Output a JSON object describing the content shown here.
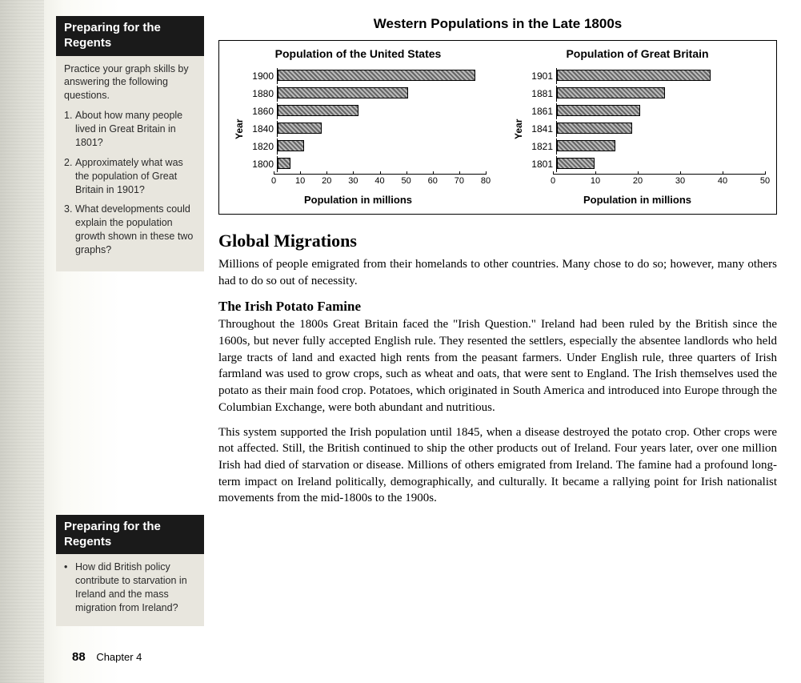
{
  "regents1": {
    "header": "Preparing for the Regents",
    "intro": "Practice your graph skills by answering the following questions.",
    "questions": [
      "About how many people lived in Great Britain in 1801?",
      "Approximately what was the population of Great Britain in 1901?",
      "What developments could explain the population growth shown in these two graphs?"
    ]
  },
  "regents2": {
    "header": "Preparing for the Regents",
    "bullets": [
      "How did British policy contribute to starvation in Ireland and the mass migration from Ireland?"
    ]
  },
  "charts": {
    "title": "Western Populations in the Late 1800s",
    "ylabel": "Year",
    "xlabel": "Population in millions",
    "us": {
      "subtitle": "Population of the United States",
      "xmax": 80,
      "xtick_step": 10,
      "bars": [
        {
          "label": "1900",
          "value": 76
        },
        {
          "label": "1880",
          "value": 50
        },
        {
          "label": "1860",
          "value": 31
        },
        {
          "label": "1840",
          "value": 17
        },
        {
          "label": "1820",
          "value": 10
        },
        {
          "label": "1800",
          "value": 5
        }
      ]
    },
    "gb": {
      "subtitle": "Population of Great Britain",
      "xmax": 50,
      "xtick_step": 10,
      "bars": [
        {
          "label": "1901",
          "value": 37
        },
        {
          "label": "1881",
          "value": 26
        },
        {
          "label": "1861",
          "value": 20
        },
        {
          "label": "1841",
          "value": 18
        },
        {
          "label": "1821",
          "value": 14
        },
        {
          "label": "1801",
          "value": 9
        }
      ]
    }
  },
  "body": {
    "h2": "Global Migrations",
    "p1": "Millions of people emigrated from their homelands to other countries. Many chose to do so; however, many others had to do so out of necessity.",
    "h3": "The Irish Potato Famine",
    "p2": "Throughout the 1800s Great Britain faced the \"Irish Question.\" Ireland had been ruled by the British since the 1600s, but never fully accepted English rule. They resented the settlers, especially the absentee landlords who held large tracts of land and exacted high rents from the peasant farmers. Under English rule, three quarters of Irish farmland was used to grow crops, such as wheat and oats, that were sent to England. The Irish themselves used the potato as their main food crop. Potatoes, which originated in South America and introduced into Europe through the Columbian Exchange, were both abundant and nutritious.",
    "p3": "This system supported the Irish population until 1845, when a disease destroyed the potato crop. Other crops were not affected. Still, the British continued to ship the other products out of Ireland. Four years later, over one million Irish had died of starvation or disease. Millions of others emigrated from Ireland. The famine had a profound long-term impact on Ireland politically, demographically, and culturally. It became a rallying point for Irish nationalist movements from the mid-1800s to the 1900s."
  },
  "footer": {
    "page": "88",
    "chapter": "Chapter 4"
  }
}
